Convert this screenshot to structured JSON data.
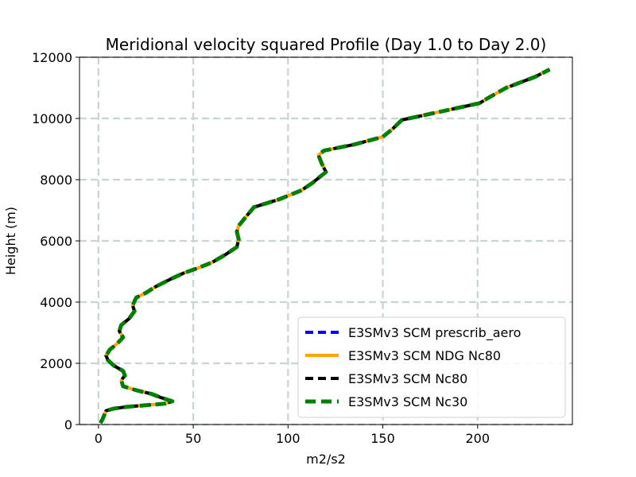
{
  "chart_data": {
    "type": "line",
    "title": "Meridional velocity squared Profile (Day 1.0 to Day 2.0)",
    "xlabel": "m2/s2",
    "ylabel": "Height (m)",
    "xlim": [
      -10,
      250
    ],
    "ylim": [
      0,
      12000
    ],
    "xticks": [
      0,
      50,
      100,
      150,
      200
    ],
    "yticks": [
      0,
      2000,
      4000,
      6000,
      8000,
      10000,
      12000
    ],
    "grid": true,
    "legend_position": "lower-right",
    "profile": [
      [
        1,
        50
      ],
      [
        2,
        150
      ],
      [
        3,
        300
      ],
      [
        4,
        450
      ],
      [
        8,
        520
      ],
      [
        15,
        580
      ],
      [
        25,
        630
      ],
      [
        35,
        680
      ],
      [
        39,
        760
      ],
      [
        33,
        880
      ],
      [
        28,
        1000
      ],
      [
        20,
        1120
      ],
      [
        13,
        1250
      ],
      [
        12,
        1450
      ],
      [
        14,
        1600
      ],
      [
        13,
        1750
      ],
      [
        8,
        1930
      ],
      [
        5,
        2100
      ],
      [
        4,
        2250
      ],
      [
        6,
        2450
      ],
      [
        10,
        2650
      ],
      [
        13,
        2850
      ],
      [
        11,
        3050
      ],
      [
        12,
        3250
      ],
      [
        16,
        3450
      ],
      [
        19,
        3700
      ],
      [
        18,
        3900
      ],
      [
        20,
        4150
      ],
      [
        25,
        4300
      ],
      [
        30,
        4500
      ],
      [
        38,
        4750
      ],
      [
        45,
        4950
      ],
      [
        52,
        5100
      ],
      [
        60,
        5300
      ],
      [
        67,
        5550
      ],
      [
        73,
        5800
      ],
      [
        74,
        6050
      ],
      [
        73,
        6300
      ],
      [
        74,
        6500
      ],
      [
        78,
        6800
      ],
      [
        82,
        7100
      ],
      [
        95,
        7350
      ],
      [
        107,
        7650
      ],
      [
        113,
        7900
      ],
      [
        117,
        8100
      ],
      [
        120,
        8250
      ],
      [
        118,
        8500
      ],
      [
        116,
        8800
      ],
      [
        119,
        8950
      ],
      [
        127,
        9050
      ],
      [
        135,
        9150
      ],
      [
        150,
        9400
      ],
      [
        155,
        9650
      ],
      [
        160,
        9950
      ],
      [
        175,
        10150
      ],
      [
        190,
        10350
      ],
      [
        201,
        10500
      ],
      [
        205,
        10650
      ],
      [
        215,
        11000
      ],
      [
        230,
        11350
      ],
      [
        238,
        11600
      ]
    ],
    "series": [
      {
        "name": "E3SMv3 SCM prescrib_aero",
        "color": "#0000ff",
        "style": "dashed"
      },
      {
        "name": "E3SMv3 SCM NDG Nc80",
        "color": "#ffa500",
        "style": "solid"
      },
      {
        "name": "E3SMv3 SCM Nc80",
        "color": "#000000",
        "style": "dashed"
      },
      {
        "name": "E3SMv3 SCM Nc30",
        "color": "#008000",
        "style": "dashed"
      }
    ]
  }
}
